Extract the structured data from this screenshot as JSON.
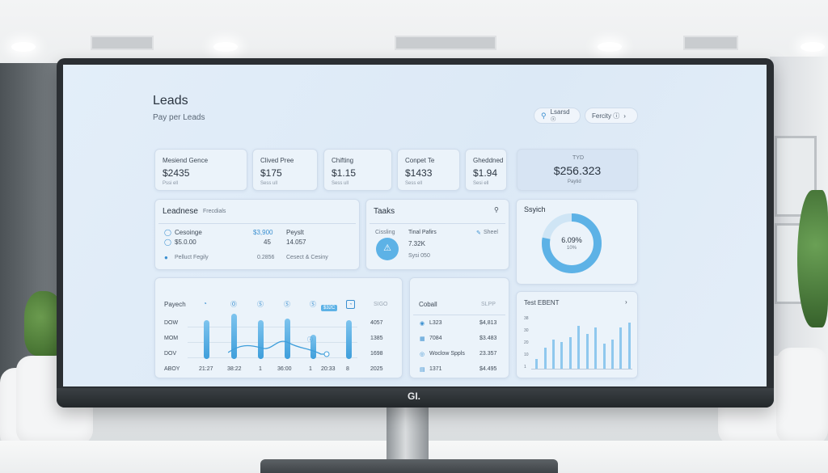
{
  "header": {
    "title": "Leads",
    "subtitle": "Pay per Leads"
  },
  "toolbar": {
    "search_label": "Lsarsd  ☉",
    "filter_label": "Fercity  ⓘ"
  },
  "kpis": [
    {
      "label": "Mesiend Gence",
      "value": "$2435",
      "note": "Pssi ell"
    },
    {
      "label": "Clived Pree",
      "value": "$175",
      "note": "Sess ull"
    },
    {
      "label": "Chifting",
      "value": "$1.15",
      "note": "Sess ull"
    },
    {
      "label": "Conpet Te",
      "value": "$1433",
      "note": "Sess ell"
    },
    {
      "label": "Gheddned",
      "value": "$1.94",
      "note": "Sesi ell"
    }
  ],
  "highlight": {
    "label": "TYD",
    "value": "$256.323",
    "note": "Paytid"
  },
  "leadnese": {
    "title": "Leadnese",
    "subtitle": "Frecdials",
    "rows": [
      {
        "a": "Cesoinge",
        "b": "$3,900",
        "c": "Peyslt"
      },
      {
        "a": "$5.0.00",
        "b": "45",
        "c": "14.057"
      },
      {
        "a": "Pelluct Fegily",
        "b": "0.2856",
        "c": "Cesect & Cesiny"
      }
    ]
  },
  "tasks": {
    "title": "Taaks",
    "left_label": "Cissling",
    "mid_label": "Tinal Pafirs",
    "mid_value": "7.32K",
    "mid_note": "Sysi 050",
    "right_label": "Sheel"
  },
  "donut": {
    "title": "Ssyich",
    "value": "6.09%",
    "sub": "10%",
    "fraction": 0.78
  },
  "payech": {
    "title": "Payech",
    "icons": [
      "◔",
      "Ⓞ",
      "Ⓢ",
      "Ⓢ",
      "Ⓢ"
    ],
    "badge_top": "◔",
    "rows": [
      "DOW",
      "MOM",
      "DOV",
      "ABOY"
    ],
    "right_values": [
      "4057",
      "1385",
      "1698",
      "2025"
    ],
    "right_head": "SIGO",
    "callout": "$32C",
    "footer": [
      "21:27",
      "38:22",
      "1",
      "36:00",
      "1",
      "20:33",
      "8"
    ]
  },
  "coball": {
    "title": "Coball",
    "head": "SLPP",
    "rows": [
      {
        "label": "L323",
        "value": "$4,813"
      },
      {
        "label": "7084",
        "value": "$3.483"
      },
      {
        "label": "Woclow Sppls",
        "value": "23.357"
      },
      {
        "label": "1371",
        "value": "$4.495"
      }
    ]
  },
  "test": {
    "title": "Test EBENT",
    "y_labels": [
      "38",
      "30",
      "20",
      "10",
      "1"
    ],
    "bars": [
      0.12,
      0.25,
      0.35,
      0.32,
      0.38,
      0.52,
      0.42,
      0.5,
      0.3,
      0.35,
      0.5,
      0.56
    ]
  },
  "monitor": {
    "logo": "GI."
  }
}
